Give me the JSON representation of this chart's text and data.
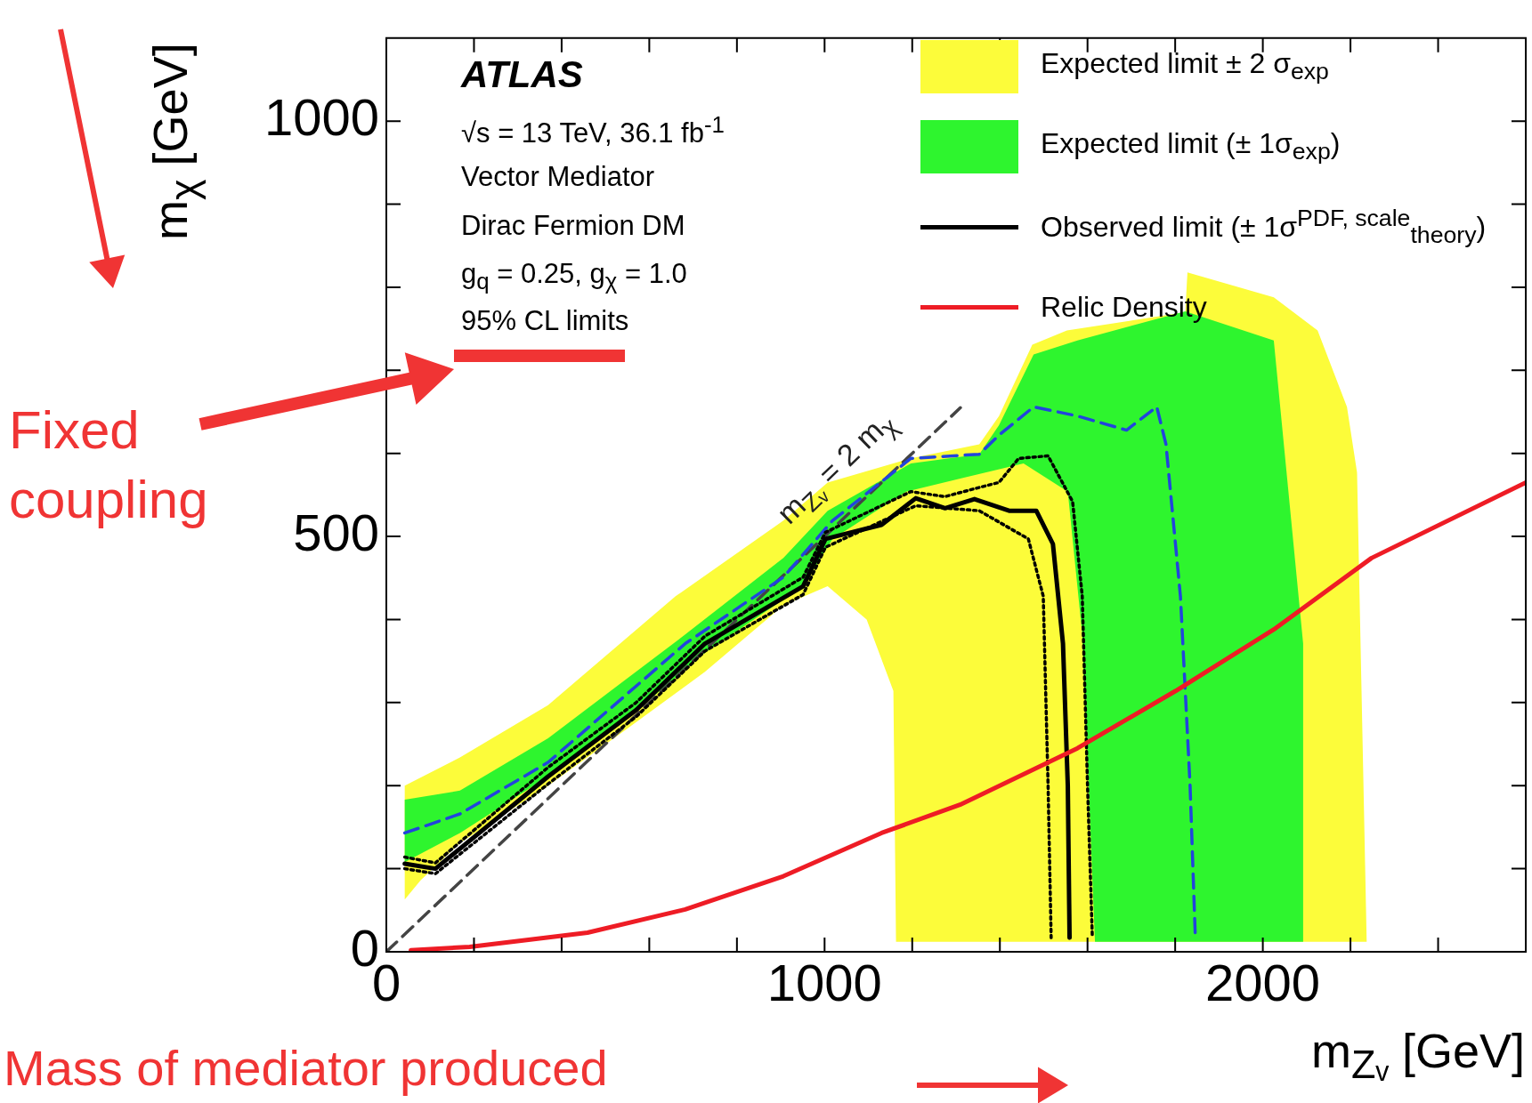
{
  "chart_data": {
    "type": "line",
    "xlabel": "m$_{Zᵥ}$ [GeV]",
    "ylabel": "m$_{χ}$ [GeV]",
    "xlim": [
      0,
      2600
    ],
    "ylim": [
      0,
      1100
    ],
    "xticks": [
      0,
      {
        "value": 200,
        "label": null
      },
      {
        "value": 400,
        "label": null
      },
      {
        "value": 600,
        "label": null
      },
      {
        "value": 800,
        "label": null
      },
      1000,
      {
        "value": 1200,
        "label": null
      },
      {
        "value": 1400,
        "label": null
      },
      {
        "value": 1600,
        "label": null
      },
      {
        "value": 1800,
        "label": null
      },
      2000,
      {
        "value": 2200,
        "label": null
      },
      {
        "value": 2400,
        "label": null
      }
    ],
    "yticks": [
      0,
      {
        "value": 100,
        "label": null
      },
      {
        "value": 200,
        "label": null
      },
      {
        "value": 300,
        "label": null
      },
      {
        "value": 400,
        "label": null
      },
      500,
      {
        "value": 600,
        "label": null
      },
      {
        "value": 700,
        "label": null
      },
      {
        "value": 800,
        "label": null
      },
      {
        "value": 900,
        "label": null
      },
      1000
    ],
    "grid": false,
    "legend": "top right",
    "marker": "none",
    "series": [
      {
        "type": "area",
        "name": "Expected limit ± 2 σ$_{exp}$",
        "color": "#fcfc3a",
        "x": [
          42,
          42,
          168,
          369,
          660,
          906,
          1007,
          1197,
          1353,
          1398,
          1474,
          1553,
          1823,
          1828,
          2025,
          2125,
          2192,
          2215,
          2237,
          1163,
          1157,
          1096,
          1007,
          906,
          727,
          548,
          369,
          168,
          78,
          42
        ],
        "values": [
          63,
          200,
          234,
          297,
          428,
          519,
          565,
          594,
          611,
          645,
          731,
          748,
          770,
          818,
          788,
          748,
          656,
          577,
          12,
          12,
          314,
          400,
          440,
          417,
          337,
          268,
          200,
          131,
          86,
          63
        ]
      },
      {
        "type": "area",
        "name": "Expected limit (± 1σ$_{exp}$)",
        "color": "#2ef52e",
        "x": [
          42,
          42,
          168,
          369,
          682,
          906,
          1007,
          1197,
          1353,
          1398,
          1477,
          1577,
          1823,
          2025,
          2092,
          2092,
          1617,
          1588,
          1555,
          1454,
          1320,
          1186,
          1018,
          951,
          727,
          548,
          369,
          168
        ],
        "values": [
          108,
          183,
          194,
          257,
          382,
          474,
          531,
          588,
          599,
          634,
          719,
          736,
          771,
          736,
          371,
          12,
          12,
          382,
          554,
          588,
          571,
          554,
          497,
          440,
          360,
          280,
          211,
          143
        ]
      },
      {
        "type": "line",
        "color": "#444444",
        "line_style": "dashed",
        "x": [
          0,
          1310
        ],
        "values": [
          0,
          655
        ]
      },
      {
        "type": "line",
        "color": "#2244dd",
        "line_style": "dashed",
        "x": [
          42,
          168,
          369,
          682,
          906,
          1018,
          1197,
          1353,
          1398,
          1477,
          1577,
          1689,
          1758,
          1779,
          1812,
          1834,
          1846
        ],
        "values": [
          143,
          166,
          228,
          371,
          451,
          519,
          594,
          599,
          622,
          656,
          645,
          628,
          656,
          611,
          428,
          200,
          17
        ]
      },
      {
        "type": "line",
        "color": "#000000",
        "line_style": "dotted",
        "x": [
          42,
          112,
          369,
          570,
          727,
          951,
          1002,
          1197,
          1275,
          1353,
          1398,
          1443,
          1510,
          1566,
          1588,
          1600,
          1611
        ],
        "values": [
          114,
          107,
          222,
          300,
          380,
          451,
          505,
          554,
          548,
          559,
          565,
          594,
          597,
          542,
          428,
          200,
          17
        ]
      },
      {
        "type": "line",
        "color": "#000000",
        "line_style": "dotted",
        "x": [
          42,
          112,
          369,
          570,
          727,
          951,
          1002,
          1208,
          1353,
          1465,
          1499,
          1510,
          1517
        ],
        "values": [
          100,
          94,
          202,
          283,
          362,
          430,
          487,
          537,
          531,
          497,
          428,
          200,
          17
        ]
      },
      {
        "type": "line",
        "name": "Observed limit (± 1σ$^{PDF, scale}$$_{theory}$)",
        "color": "#000000",
        "line_style": "solid",
        "x": [
          42,
          112,
          369,
          570,
          727,
          951,
          1002,
          1130,
          1208,
          1275,
          1342,
          1421,
          1483,
          1521,
          1544,
          1555,
          1559
        ],
        "values": [
          106,
          100,
          211,
          291,
          371,
          440,
          497,
          514,
          546,
          534,
          545,
          531,
          531,
          491,
          371,
          200,
          17
        ]
      },
      {
        "type": "line",
        "name": "Relic Density",
        "color": "#ee1c25",
        "line_style": "solid",
        "x": [
          56,
          190,
          459,
          682,
          906,
          1130,
          1309,
          1577,
          1801,
          2025,
          2248,
          2600
        ],
        "values": [
          2,
          6,
          23,
          51,
          91,
          143,
          177,
          245,
          314,
          388,
          474,
          565
        ]
      }
    ],
    "annotations": [
      "ATLAS",
      "√s = 13 TeV, 36.1 fb$^{-1}$",
      "Vector Mediator",
      "Dirac Fermion DM",
      "g$_{q}$ = 0.25, g$_{χ}$ = 1.0",
      "95% CL limits",
      "m$_{Zᵥ}$ = 2 m$_{χ}$",
      "Fixed coupling",
      "Mass of mediator produced"
    ]
  }
}
